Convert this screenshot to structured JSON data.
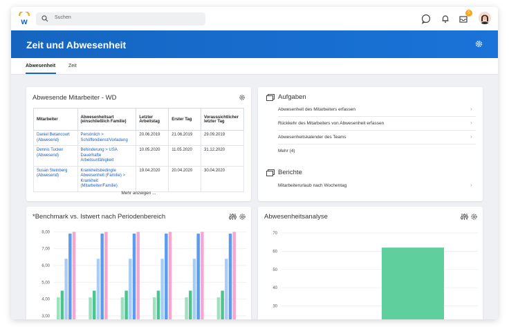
{
  "topbar": {
    "search_placeholder": "Suchen",
    "inbox_badge": "5"
  },
  "page": {
    "title": "Zeit und Abwesenheit",
    "tabs": [
      {
        "label": "Abwesenheit",
        "active": true
      },
      {
        "label": "Zeit",
        "active": false
      }
    ]
  },
  "absent_card": {
    "title": "Abwesende Mitarbeiter - WD",
    "columns": [
      "Mitarbeiter",
      "Abwesenheitsart (einschließlich Familie)",
      "Letzter Arbeitstag",
      "Erster Tag",
      "Voraussichtlicher letzter Tag"
    ],
    "rows": [
      {
        "employee": "Daniel Betancourt (Abwesend)",
        "type": "Persönlich > Schöffendienst/Vorladung",
        "last_workday": "20.06.2019",
        "first_day": "21.06.2019",
        "expected_last_day": "29.09.2019"
      },
      {
        "employee": "Dennis Tucker (Abwesend)",
        "type": "Behinderung > USA Dauerhafte Arbeitsunfähigkeit",
        "last_workday": "10.05.2020",
        "first_day": "11.05.2020",
        "expected_last_day": "31.12.2020"
      },
      {
        "employee": "Susan Steinberg (Abwesend)",
        "type": "Krankheitsbedingte Abwesenheit (Familie) > Krankheit (Mitarbeiter/Familie)",
        "last_workday": "19.04.2020",
        "first_day": "20.04.2020",
        "expected_last_day": "30.04.2020"
      }
    ],
    "more_label": "Mehr anzeigen ..."
  },
  "tasks_card": {
    "title": "Aufgaben",
    "items": [
      "Abwesenheit des Mitarbeiters erfassen",
      "Rückkehr des Mitarbeiters von Abwesenheit erfassen",
      "Abwesenheitskalender des Teams",
      "Mehr (4)"
    ],
    "reports_title": "Berichte",
    "reports": [
      "Mitarbeiterurlaub nach Wochentag"
    ]
  },
  "benchmark_card": {
    "title": "*Benchmark vs. Istwert nach Periodenbereich"
  },
  "analysis_card": {
    "title": "Abwesenheitsanalyse"
  },
  "chart_data": [
    {
      "type": "bar",
      "title": "*Benchmark vs. Istwert nach Periodenbereich",
      "y_ticks": [
        "8,00",
        "7,00",
        "6,00",
        "5,00",
        "4,00",
        "3,00"
      ],
      "ylim": [
        2.5,
        8.1
      ],
      "groups": 6,
      "series_colors": [
        "#9fe0bf",
        "#4cc48e",
        "#a8cdf6",
        "#5b9cf0",
        "#f6a6cf"
      ],
      "values": [
        [
          4.1,
          4.5,
          6.4,
          7.9,
          8.0
        ],
        [
          4.1,
          4.5,
          6.4,
          7.9,
          8.0
        ],
        [
          4.1,
          4.5,
          6.4,
          7.9,
          8.0
        ],
        [
          4.1,
          4.5,
          6.4,
          7.9,
          8.0
        ],
        [
          4.1,
          4.5,
          6.4,
          7.9,
          8.0
        ],
        [
          4.1,
          4.5,
          6.4,
          7.9,
          8.0
        ]
      ],
      "extra_bar": {
        "group": 5,
        "value": 2.7,
        "color": "#e94d8a"
      }
    },
    {
      "type": "bar",
      "title": "Abwesenheitsanalyse",
      "y_ticks": [
        "70",
        "60",
        "50",
        "40",
        "30"
      ],
      "ylim": [
        20,
        70
      ],
      "values": [
        62
      ],
      "color": "#5fcf9e"
    }
  ]
}
